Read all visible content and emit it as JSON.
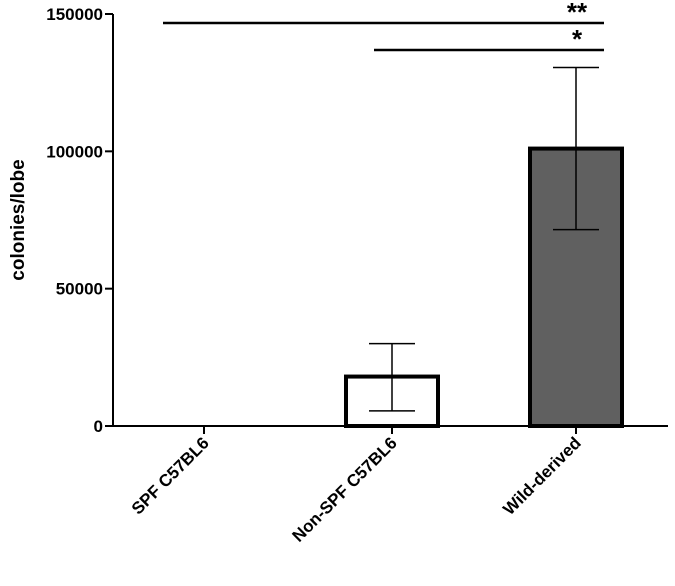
{
  "chart_data": {
    "type": "bar",
    "title": "",
    "xlabel": "",
    "ylabel": "colonies/lobe",
    "ylim": [
      0,
      150000
    ],
    "yticks": [
      0,
      50000,
      100000,
      150000
    ],
    "ytick_labels": [
      "0",
      "50000",
      "100000",
      "150000"
    ],
    "categories": [
      "SPF C57BL6",
      "Non-SPF C57BL6",
      "Wild-derived"
    ],
    "values": [
      0,
      18000,
      101000
    ],
    "error_low": [
      0,
      5500,
      71500
    ],
    "error_high": [
      0,
      30000,
      130500
    ],
    "bar_fills": [
      "#ffffff",
      "#ffffff",
      "#606060"
    ],
    "significance": [
      {
        "from": 0,
        "to": 2,
        "label": "**"
      },
      {
        "from": 1,
        "to": 2,
        "label": "*"
      }
    ],
    "grid": false,
    "legend": "none"
  }
}
